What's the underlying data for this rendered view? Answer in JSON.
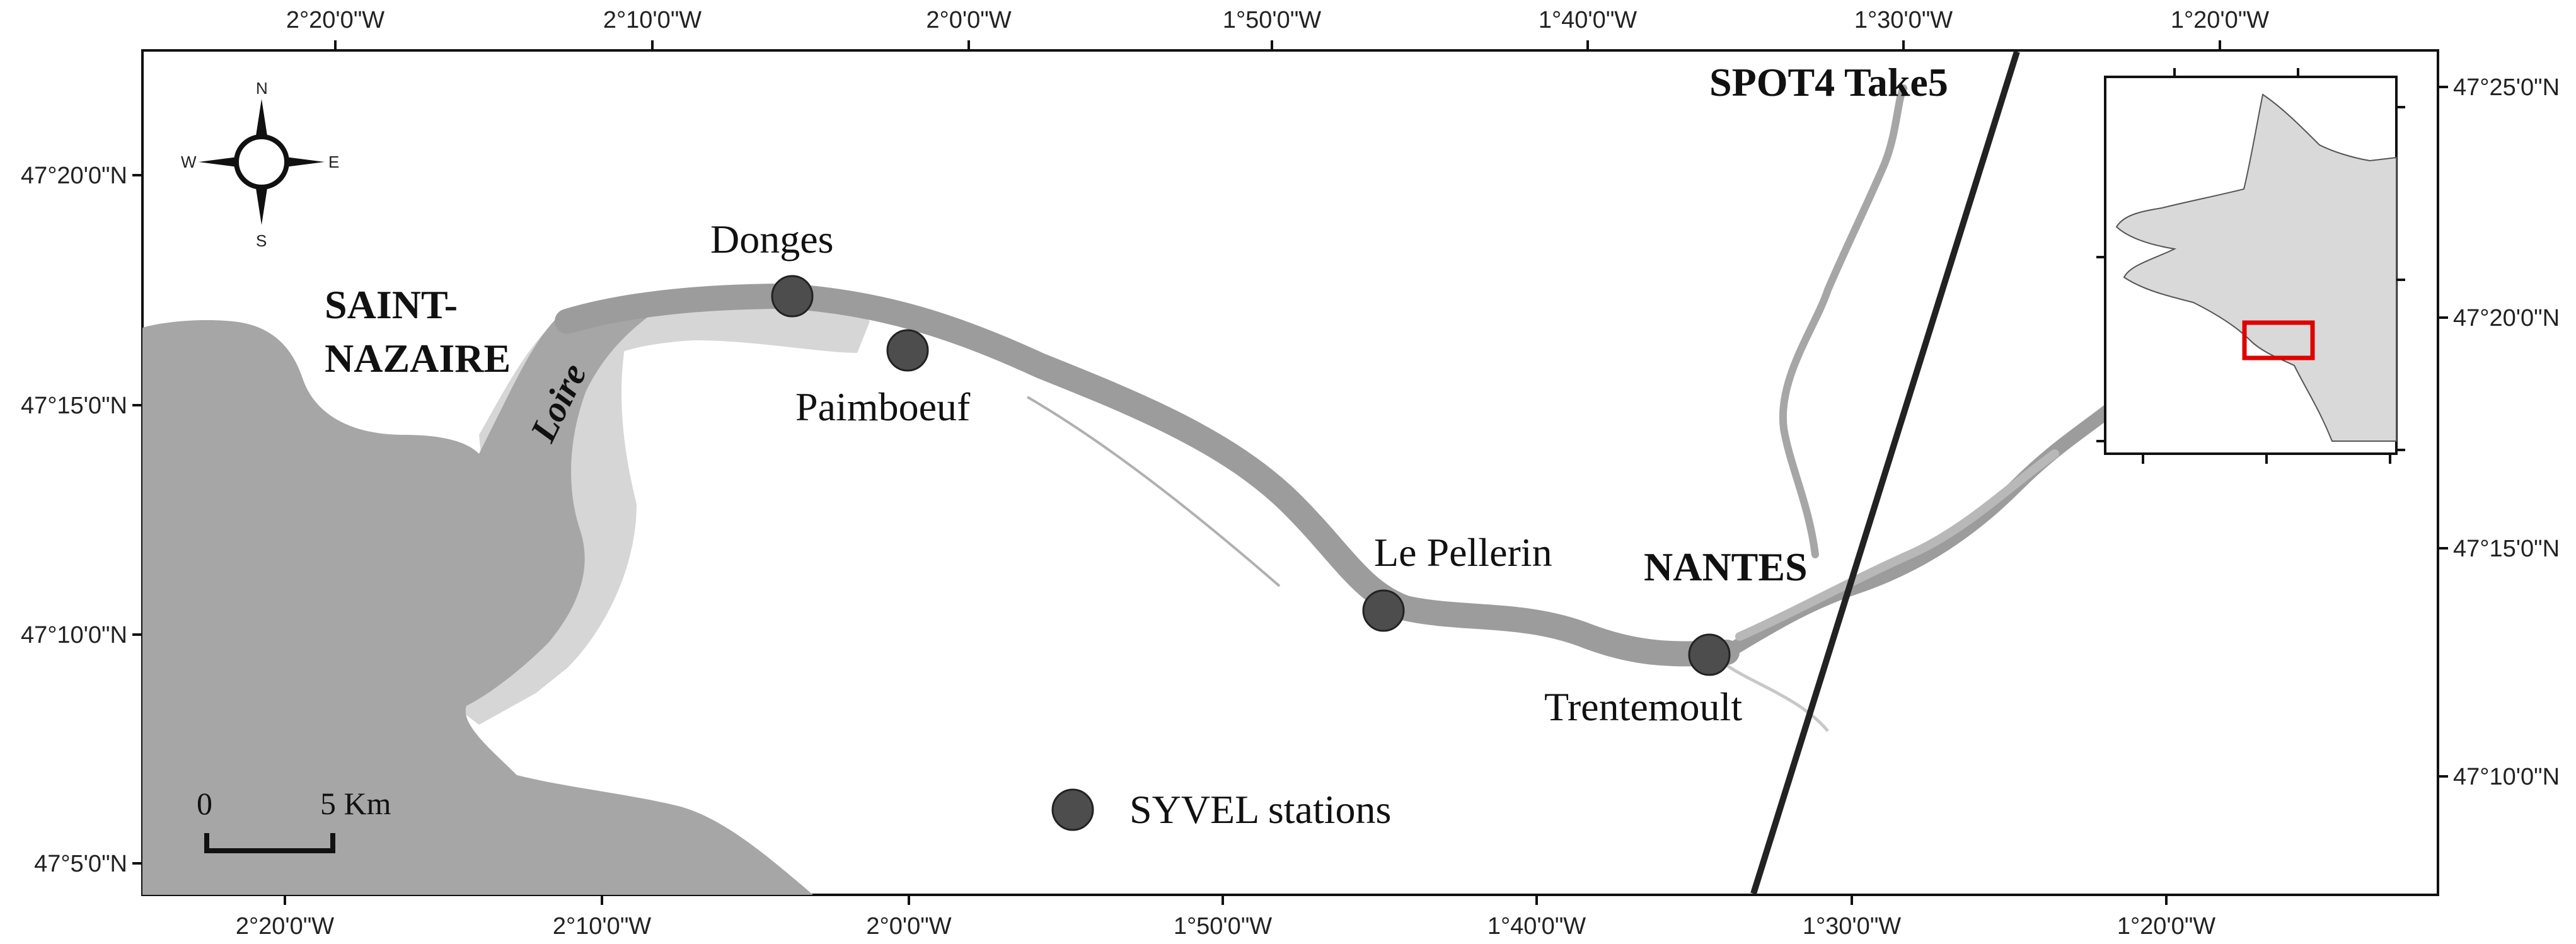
{
  "map": {
    "top_lon_labels": [
      "2°20'0\"W",
      "2°10'0\"W",
      "2°0'0\"W",
      "1°50'0\"W",
      "1°40'0\"W",
      "1°30'0\"W",
      "1°20'0\"W"
    ],
    "bottom_lon_labels": [
      "2°20'0\"W",
      "2°10'0\"W",
      "2°0'0\"W",
      "1°50'0\"W",
      "1°40'0\"W",
      "1°30'0\"W",
      "1°20'0\"W"
    ],
    "left_lat_labels": [
      "47°20'0\"N",
      "47°15'0\"N",
      "47°10'0\"N",
      "47°5'0\"N"
    ],
    "right_lat_labels": [
      "47°25'0\"N",
      "47°20'0\"N",
      "47°15'0\"N",
      "47°10'0\"N"
    ],
    "compass": {
      "n": "N",
      "s": "S",
      "e": "E",
      "w": "W"
    },
    "places": {
      "saint_nazaire_line1": "SAINT-",
      "saint_nazaire_line2": "NAZAIRE",
      "loire": "Loire",
      "nantes": "NANTES",
      "spot4": "SPOT4 Take5"
    },
    "stations": [
      {
        "name": "Donges"
      },
      {
        "name": "Paimboeuf"
      },
      {
        "name": "Le Pellerin"
      },
      {
        "name": "Trentemoult"
      }
    ],
    "legend": {
      "label": "SYVEL stations"
    },
    "scale": {
      "start": "0",
      "end": "5 Km"
    },
    "colors": {
      "land_estuary": "#a6a6a6",
      "intertidal": "#d6d6d6",
      "river": "#9c9c9c",
      "station": "#4d4d4d",
      "inset_land": "#d9d9d9",
      "inset_box": "#e00000"
    }
  }
}
